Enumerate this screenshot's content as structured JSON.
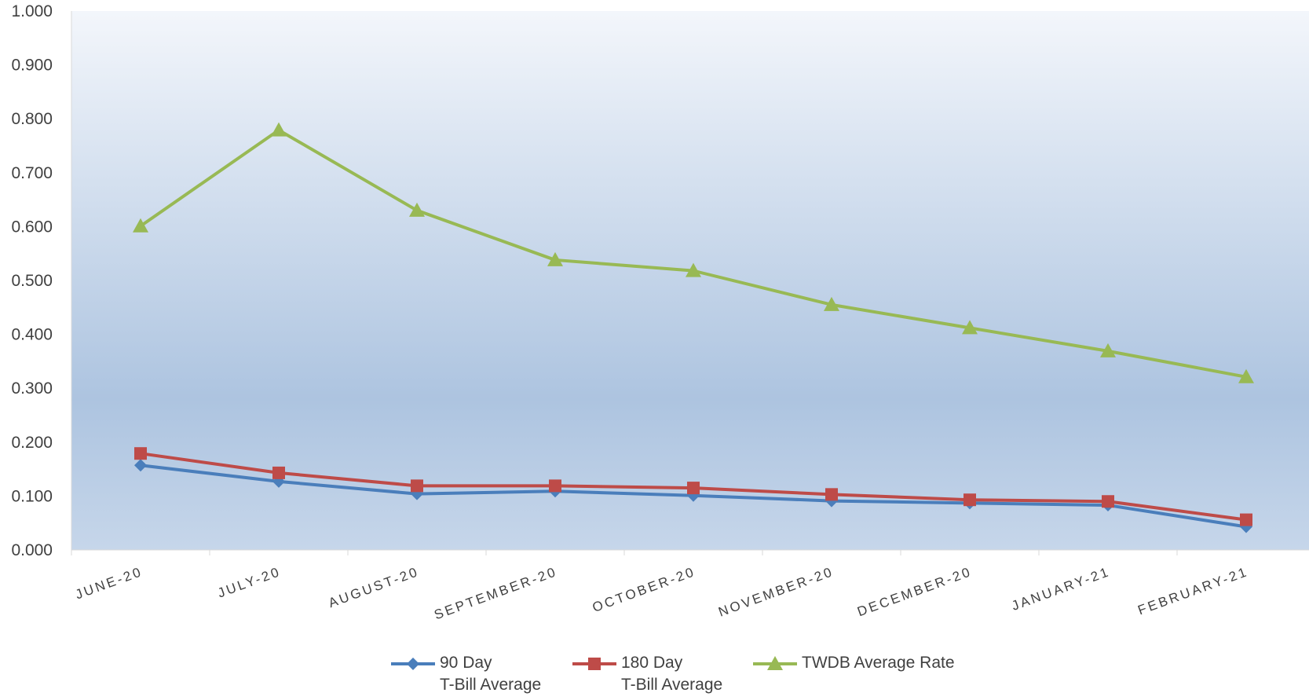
{
  "chart_data": {
    "type": "line",
    "categories": [
      "JUNE-20",
      "JULY-20",
      "AUGUST-20",
      "SEPTEMBER-20",
      "OCTOBER-20",
      "NOVEMBER-20",
      "DECEMBER-20",
      "JANUARY-21",
      "FEBRUARY-21"
    ],
    "ylim": [
      0,
      1.0
    ],
    "yticks": [
      "0.000",
      "0.100",
      "0.200",
      "0.300",
      "0.400",
      "0.500",
      "0.600",
      "0.700",
      "0.800",
      "0.900",
      "1.000"
    ],
    "grid": false,
    "legend_position": "bottom",
    "series": [
      {
        "name": "90 Day\nT-Bill Average",
        "color": "#4a7ebb",
        "marker": "diamond",
        "values": [
          0.157,
          0.127,
          0.104,
          0.109,
          0.101,
          0.091,
          0.087,
          0.083,
          0.043
        ]
      },
      {
        "name": "180 Day\nT-Bill Average",
        "color": "#be4b48",
        "marker": "square",
        "values": [
          0.179,
          0.143,
          0.119,
          0.119,
          0.115,
          0.103,
          0.093,
          0.09,
          0.056
        ]
      },
      {
        "name": "TWDB Average Rate",
        "color": "#98b954",
        "marker": "triangle",
        "values": [
          0.601,
          0.779,
          0.63,
          0.538,
          0.518,
          0.455,
          0.412,
          0.369,
          0.321
        ]
      }
    ]
  }
}
